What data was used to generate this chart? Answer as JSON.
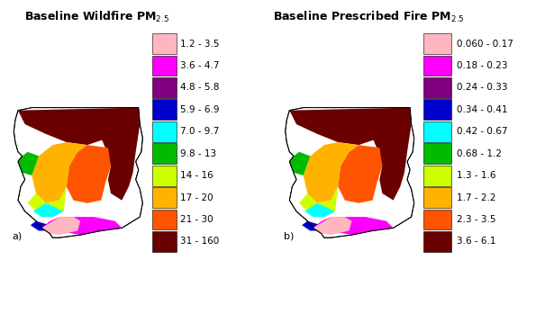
{
  "title_left": "Baseline Wildfire PM$_{2.5}$",
  "title_right": "Baseline Prescribed Fire PM$_{2.5}$",
  "label_a": "a)",
  "label_b": "b)",
  "legend_left": {
    "labels": [
      "1.2 - 3.5",
      "3.6 - 4.7",
      "4.8 - 5.8",
      "5.9 - 6.9",
      "7.0 - 9.7",
      "9.8 - 13",
      "14 - 16",
      "17 - 20",
      "21 - 30",
      "31 - 160"
    ],
    "colors": [
      "#FFB6C1",
      "#FF00FF",
      "#800080",
      "#0000CD",
      "#00FFFF",
      "#00BB00",
      "#CCFF00",
      "#FFB300",
      "#FF5500",
      "#6B0000"
    ]
  },
  "legend_right": {
    "labels": [
      "0.060 - 0.17",
      "0.18 - 0.23",
      "0.24 - 0.33",
      "0.34 - 0.41",
      "0.42 - 0.67",
      "0.68 - 1.2",
      "1.3 - 1.6",
      "1.7 - 2.2",
      "2.3 - 3.5",
      "3.6 - 6.1"
    ],
    "colors": [
      "#FFB6C1",
      "#FF00FF",
      "#800080",
      "#0000CD",
      "#00FFFF",
      "#00BB00",
      "#CCFF00",
      "#FFB300",
      "#FF5500",
      "#6B0000"
    ]
  },
  "bg_color": "#FFFFFF",
  "font_size_title": 9,
  "font_size_legend": 7.5,
  "font_size_label": 8
}
